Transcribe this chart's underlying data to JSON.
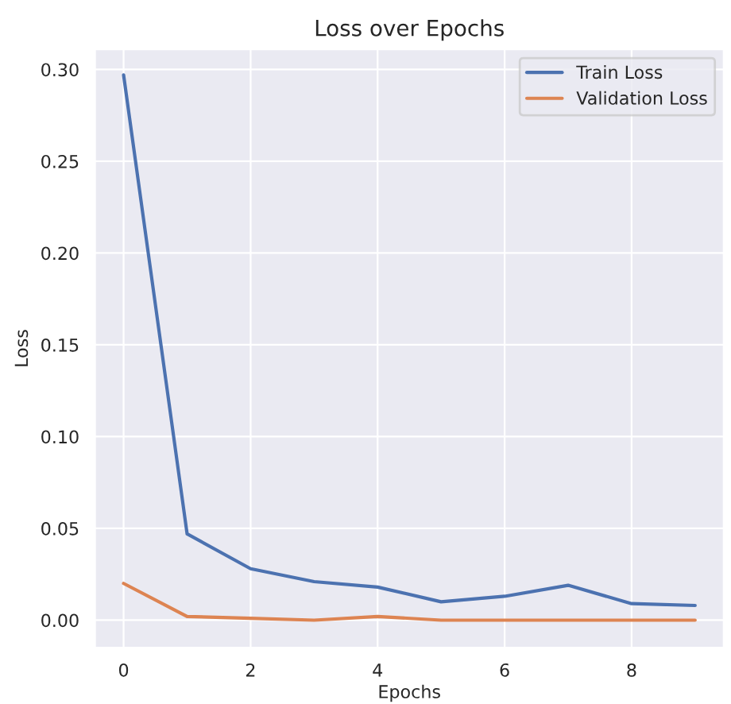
{
  "chart_data": {
    "type": "line",
    "title": "Loss over Epochs",
    "xlabel": "Epochs",
    "ylabel": "Loss",
    "x": [
      0,
      1,
      2,
      3,
      4,
      5,
      6,
      7,
      8,
      9
    ],
    "series": [
      {
        "name": "Train Loss",
        "color": "#4c72b0",
        "values": [
          0.297,
          0.047,
          0.028,
          0.021,
          0.018,
          0.01,
          0.013,
          0.019,
          0.009,
          0.008
        ]
      },
      {
        "name": "Validation Loss",
        "color": "#dd8452",
        "values": [
          0.02,
          0.002,
          0.001,
          0.0,
          0.002,
          0.0,
          0.0,
          0.0,
          0.0,
          0.0
        ]
      }
    ],
    "xlim": [
      -0.45,
      9.45
    ],
    "xticks": [
      0,
      2,
      4,
      6,
      8
    ],
    "ylim": [
      -0.015,
      0.311
    ],
    "yticks": [
      {
        "value": 0,
        "label": "0.00"
      },
      0.05,
      {
        "value": 0.1,
        "label": "0.10"
      },
      0.15,
      {
        "value": 0.2,
        "label": "0.20"
      },
      0.25,
      {
        "value": 0.3,
        "label": "0.30"
      }
    ],
    "grid": true,
    "legend": "top right"
  }
}
